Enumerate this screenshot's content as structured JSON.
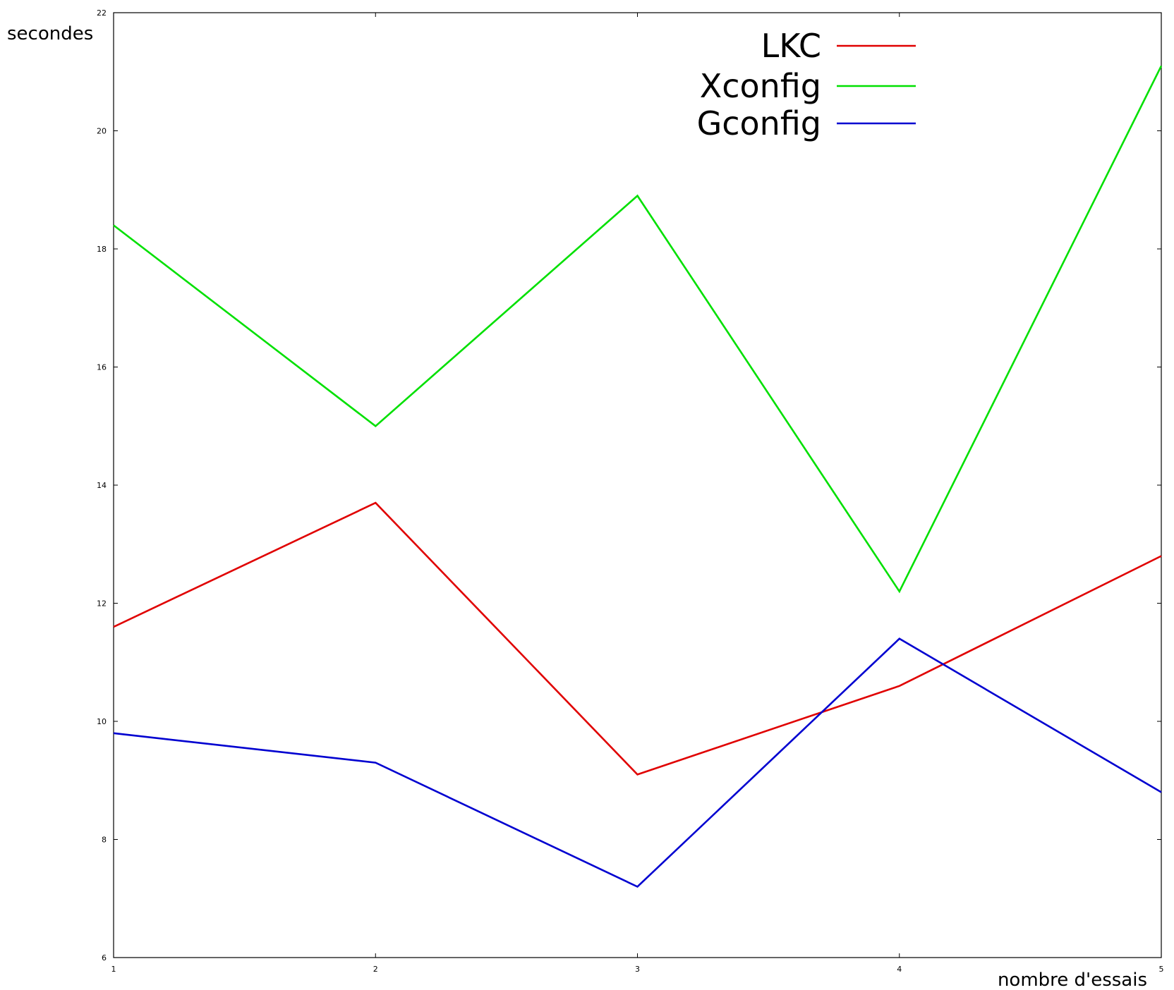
{
  "chart_data": {
    "type": "line",
    "ylabel": "secondes",
    "xlabel": "nombre d'essais",
    "x": [
      1,
      2,
      3,
      4,
      5
    ],
    "xlim": [
      1,
      5
    ],
    "ylim": [
      6,
      22
    ],
    "xticks": [
      "1",
      "2",
      "3",
      "4",
      "5"
    ],
    "yticks": [
      "6",
      "8",
      "10",
      "12",
      "14",
      "16",
      "18",
      "20",
      "22"
    ],
    "grid": false,
    "legend_position": "top-right",
    "series": [
      {
        "name": "LKC",
        "color": "#e00000",
        "values": [
          11.6,
          13.7,
          9.1,
          10.6,
          12.8
        ]
      },
      {
        "name": "Xconfig",
        "color": "#00e000",
        "values": [
          18.4,
          15.0,
          18.9,
          12.2,
          21.1
        ]
      },
      {
        "name": "Gconfig",
        "color": "#0000d0",
        "values": [
          9.8,
          9.3,
          7.2,
          11.4,
          8.8
        ]
      }
    ]
  }
}
